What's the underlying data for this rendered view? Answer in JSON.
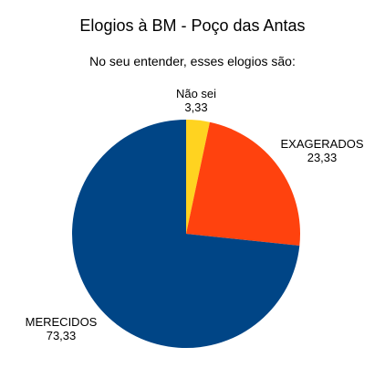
{
  "chart_data": {
    "type": "pie",
    "title": "Elogios à BM - Poço das Antas",
    "subtitle": "No seu entender, esses elogios são:",
    "slices": [
      {
        "label": "Não sei",
        "value_label": "3,33",
        "value": 3.33,
        "color": "#ffd320"
      },
      {
        "label": "EXAGERADOS",
        "value_label": "23,33",
        "value": 23.33,
        "color": "#ff420e"
      },
      {
        "label": "MERECIDOS",
        "value_label": "73,33",
        "value": 73.33,
        "color": "#004586"
      }
    ],
    "start_angle_deg": 0,
    "direction": "clockwise",
    "legend": "none"
  }
}
